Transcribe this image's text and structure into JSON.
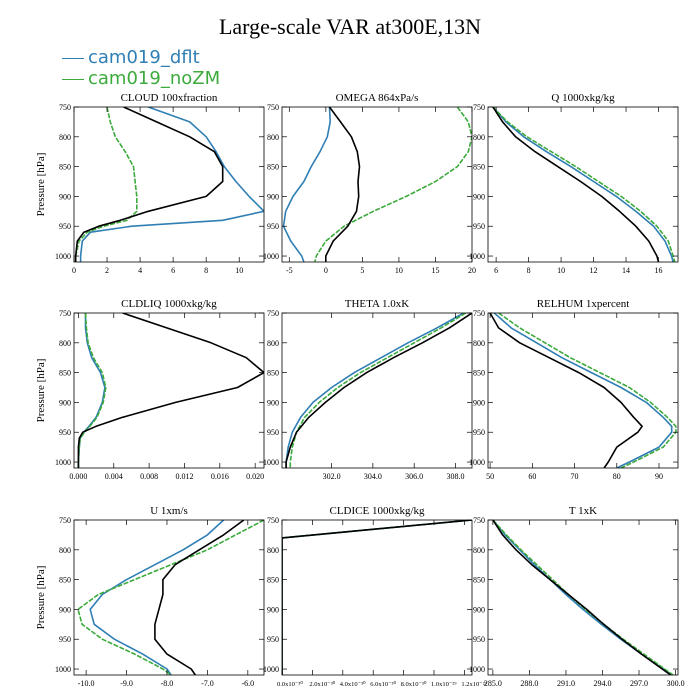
{
  "title": "Large-scale VAR at300E,13N",
  "legend": [
    {
      "name": "cam019_dflt",
      "color": "#2f7fb5"
    },
    {
      "name": "cam019_noZM",
      "color": "#3caa3c"
    }
  ],
  "colors": {
    "third": "#000000",
    "axis": "#000000"
  },
  "chart_data": [
    {
      "type": "line",
      "title": "CLOUD  100xfraction",
      "ylabel": "Pressure [hPa]",
      "xlim": [
        0,
        11.5
      ],
      "ylim": [
        750,
        1010
      ],
      "xticks": [
        0,
        2,
        4,
        6,
        8,
        10
      ],
      "xtick_labels": [
        "0",
        "2",
        "4",
        "6",
        "8",
        "10"
      ],
      "yticks": [
        750,
        800,
        850,
        900,
        950,
        1000
      ],
      "ytick_labels": [
        "750",
        "800",
        "850",
        "900",
        "950",
        "1000"
      ],
      "pressure": [
        750,
        775,
        800,
        825,
        850,
        875,
        900,
        925,
        940,
        950,
        960,
        975,
        1000,
        1010
      ],
      "series": [
        {
          "color": "#2f7fb5",
          "values": [
            4.5,
            7.0,
            8.0,
            8.6,
            9.1,
            9.8,
            10.6,
            11.5,
            9.0,
            3.5,
            1.0,
            0.5,
            0.4,
            0.4
          ]
        },
        {
          "color": "#3caa3c",
          "values": [
            2.0,
            2.2,
            2.5,
            3.1,
            3.6,
            3.7,
            3.8,
            3.8,
            3.2,
            1.8,
            0.8,
            0.3,
            0.1,
            0.1
          ]
        },
        {
          "color": "#000000",
          "values": [
            3.0,
            5.0,
            7.0,
            8.5,
            9.0,
            9.0,
            8.0,
            4.5,
            2.8,
            1.5,
            0.6,
            0.2,
            0.1,
            0.1
          ]
        }
      ]
    },
    {
      "type": "line",
      "title": "OMEGA  864xPa/s",
      "ylabel": "",
      "xlim": [
        -6,
        20
      ],
      "ylim": [
        750,
        1010
      ],
      "xticks": [
        -5,
        0,
        5,
        10,
        15,
        20
      ],
      "xtick_labels": [
        "-5",
        "0",
        "5",
        "10",
        "15",
        "20"
      ],
      "yticks": [
        750,
        800,
        850,
        900,
        950,
        1000
      ],
      "ytick_labels": [
        "750",
        "800",
        "850",
        "900",
        "950",
        "1000"
      ],
      "pressure": [
        750,
        775,
        800,
        825,
        850,
        875,
        900,
        925,
        950,
        975,
        1000,
        1010
      ],
      "series": [
        {
          "color": "#2f7fb5",
          "values": [
            0.5,
            0.6,
            0.2,
            -0.8,
            -2.0,
            -3.0,
            -4.5,
            -5.5,
            -5.8,
            -4.8,
            -3.3,
            -3.0
          ]
        },
        {
          "color": "#3caa3c",
          "values": [
            18.0,
            19.5,
            20.0,
            19.5,
            18.0,
            15.0,
            11.0,
            6.5,
            2.5,
            0.0,
            -1.3,
            -1.5
          ]
        },
        {
          "color": "#000000",
          "values": [
            0.5,
            2.0,
            3.5,
            4.3,
            4.6,
            4.4,
            4.5,
            4.2,
            3.0,
            1.0,
            0.0,
            0.0
          ]
        }
      ]
    },
    {
      "type": "line",
      "title": "Q  1000xkg/kg",
      "ylabel": "",
      "xlim": [
        5.5,
        17.2
      ],
      "ylim": [
        750,
        1010
      ],
      "xticks": [
        6,
        8,
        10,
        12,
        14,
        16
      ],
      "xtick_labels": [
        "6",
        "8",
        "10",
        "12",
        "14",
        "16"
      ],
      "yticks": [
        750,
        800,
        850,
        900,
        950,
        1000
      ],
      "ytick_labels": [
        "750",
        "800",
        "850",
        "900",
        "950",
        "1000"
      ],
      "pressure": [
        750,
        775,
        800,
        825,
        850,
        875,
        900,
        925,
        950,
        975,
        1000,
        1010
      ],
      "series": [
        {
          "color": "#2f7fb5",
          "values": [
            5.8,
            6.6,
            7.7,
            9.1,
            10.6,
            12.0,
            13.4,
            14.6,
            15.7,
            16.4,
            16.8,
            16.9
          ]
        },
        {
          "color": "#3caa3c",
          "values": [
            5.8,
            6.7,
            7.9,
            9.4,
            10.9,
            12.3,
            13.7,
            14.9,
            15.9,
            16.6,
            16.9,
            17.0
          ]
        },
        {
          "color": "#000000",
          "values": [
            5.8,
            6.4,
            7.2,
            8.4,
            9.8,
            11.2,
            12.5,
            13.6,
            14.6,
            15.4,
            15.9,
            16.0
          ]
        }
      ]
    },
    {
      "type": "line",
      "title": "CLDLIQ  1000xkg/kg",
      "ylabel": "Pressure [hPa]",
      "xlim": [
        -0.0005,
        0.021
      ],
      "ylim": [
        750,
        1010
      ],
      "xticks": [
        0,
        0.004,
        0.008,
        0.012,
        0.016,
        0.02
      ],
      "xtick_labels": [
        "0.000",
        "0.004",
        "0.008",
        "0.012",
        "0.016",
        "0.020"
      ],
      "yticks": [
        750,
        800,
        850,
        900,
        950,
        1000
      ],
      "ytick_labels": [
        "750",
        "800",
        "850",
        "900",
        "950",
        "1000"
      ],
      "pressure": [
        750,
        775,
        800,
        825,
        850,
        875,
        900,
        925,
        940,
        950,
        960,
        975,
        1000,
        1010
      ],
      "series": [
        {
          "color": "#2f7fb5",
          "values": [
            0.0008,
            0.0008,
            0.001,
            0.0015,
            0.0025,
            0.003,
            0.0027,
            0.002,
            0.0012,
            0.0006,
            0.0002,
            0.0001,
            0.0,
            0.0
          ]
        },
        {
          "color": "#3caa3c",
          "values": [
            0.0008,
            0.0009,
            0.0011,
            0.0017,
            0.0027,
            0.0031,
            0.0028,
            0.0021,
            0.0013,
            0.0007,
            0.0002,
            0.0001,
            0.0,
            0.0
          ]
        },
        {
          "color": "#000000",
          "values": [
            0.005,
            0.01,
            0.015,
            0.019,
            0.021,
            0.018,
            0.011,
            0.005,
            0.002,
            0.0005,
            0.0001,
            0.0,
            0.0,
            0.0
          ]
        }
      ]
    },
    {
      "type": "line",
      "title": "THETA  1.0xK",
      "ylabel": "",
      "xlim": [
        299.6,
        308.8
      ],
      "ylim": [
        750,
        1010
      ],
      "xticks": [
        302,
        304,
        306,
        308
      ],
      "xtick_labels": [
        "302.0",
        "304.0",
        "306.0",
        "308.0"
      ],
      "yticks": [
        750,
        800,
        850,
        900,
        950,
        1000
      ],
      "ytick_labels": [
        "750",
        "800",
        "850",
        "900",
        "950",
        "1000"
      ],
      "pressure": [
        750,
        775,
        800,
        825,
        850,
        875,
        900,
        925,
        950,
        975,
        1000,
        1010
      ],
      "series": [
        {
          "color": "#2f7fb5",
          "values": [
            308.4,
            307.1,
            305.7,
            304.4,
            303.1,
            302.0,
            301.1,
            300.5,
            300.1,
            299.9,
            299.8,
            299.8
          ]
        },
        {
          "color": "#3caa3c",
          "values": [
            308.5,
            307.3,
            306.0,
            304.7,
            303.4,
            302.3,
            301.4,
            300.7,
            300.3,
            300.1,
            300.0,
            300.0
          ]
        },
        {
          "color": "#000000",
          "values": [
            308.8,
            307.7,
            306.4,
            305.0,
            303.7,
            302.6,
            301.7,
            300.9,
            300.3,
            300.0,
            299.8,
            299.8
          ]
        }
      ]
    },
    {
      "type": "line",
      "title": "RELHUM  1xpercent",
      "ylabel": "",
      "xlim": [
        49.5,
        94.5
      ],
      "ylim": [
        750,
        1010
      ],
      "xticks": [
        50,
        60,
        70,
        80,
        90
      ],
      "xtick_labels": [
        "50",
        "60",
        "70",
        "80",
        "90"
      ],
      "yticks": [
        750,
        800,
        850,
        900,
        950,
        1000
      ],
      "ytick_labels": [
        "750",
        "800",
        "850",
        "900",
        "950",
        "1000"
      ],
      "pressure": [
        750,
        775,
        800,
        825,
        850,
        875,
        900,
        925,
        940,
        950,
        975,
        1000,
        1010
      ],
      "series": [
        {
          "color": "#2f7fb5",
          "values": [
            51,
            55,
            61,
            67,
            74,
            81,
            87,
            91,
            93,
            93,
            90,
            83,
            80
          ]
        },
        {
          "color": "#3caa3c",
          "values": [
            52,
            57,
            63,
            69,
            76,
            83,
            88,
            92,
            94,
            94,
            91,
            84,
            81
          ]
        },
        {
          "color": "#000000",
          "values": [
            50,
            52,
            57,
            64,
            71,
            77,
            81,
            84,
            86,
            85,
            80,
            78,
            77
          ]
        }
      ]
    },
    {
      "type": "line",
      "title": "U  1xm/s",
      "ylabel": "Pressure [hPa]",
      "xlim": [
        -10.3,
        -5.6
      ],
      "ylim": [
        750,
        1010
      ],
      "xticks": [
        -10,
        -9,
        -8,
        -7,
        -6
      ],
      "xtick_labels": [
        "-10.0",
        "-9.0",
        "-8.0",
        "-7.0",
        "-6.0"
      ],
      "yticks": [
        750,
        800,
        850,
        900,
        950,
        1000
      ],
      "ytick_labels": [
        "750",
        "800",
        "850",
        "900",
        "950",
        "1000"
      ],
      "pressure": [
        750,
        775,
        800,
        825,
        850,
        875,
        900,
        925,
        950,
        975,
        1000,
        1010
      ],
      "series": [
        {
          "color": "#2f7fb5",
          "values": [
            -6.6,
            -7.0,
            -7.6,
            -8.3,
            -9.0,
            -9.6,
            -9.9,
            -9.8,
            -9.3,
            -8.6,
            -8.0,
            -7.9
          ]
        },
        {
          "color": "#3caa3c",
          "values": [
            -5.6,
            -6.3,
            -7.0,
            -7.9,
            -8.8,
            -9.7,
            -10.2,
            -10.1,
            -9.6,
            -8.8,
            -8.1,
            -7.9
          ]
        },
        {
          "color": "#000000",
          "values": [
            -6.1,
            -6.6,
            -7.2,
            -7.8,
            -8.1,
            -8.1,
            -8.2,
            -8.3,
            -8.3,
            -8.0,
            -7.4,
            -7.3
          ]
        }
      ]
    },
    {
      "type": "line",
      "title": "CLDICE  1000xkg/kg",
      "ylabel": "",
      "xlim": [
        0,
        1.25e-29
      ],
      "ylim": [
        750,
        1010
      ],
      "xticks": [
        0,
        2e-30,
        4e-30,
        6e-30,
        8e-30,
        1e-29,
        1.2e-29
      ],
      "xtick_labels": [
        "0.0x10⁻³⁰",
        "2.0x10⁻³⁰",
        "4.0x10⁻³⁰",
        "6.0x10⁻³⁰",
        "8.0x10⁻³⁰",
        "1.0x10⁻²⁹",
        "1.2x10⁻²⁹"
      ],
      "yticks": [
        750,
        800,
        850,
        900,
        950,
        1000
      ],
      "ytick_labels": [
        "750",
        "800",
        "850",
        "900",
        "950",
        "1000"
      ],
      "pressure": [
        750,
        780,
        800,
        850,
        900,
        950,
        1000,
        1010
      ],
      "series": [
        {
          "color": "#2f7fb5",
          "values": [
            1.25e-29,
            0,
            0,
            0,
            0,
            0,
            0,
            0
          ]
        },
        {
          "color": "#3caa3c",
          "values": [
            1.25e-29,
            0,
            0,
            0,
            0,
            0,
            0,
            0
          ]
        },
        {
          "color": "#000000",
          "values": [
            1.25e-29,
            0,
            0,
            0,
            0,
            0,
            0,
            0
          ]
        }
      ]
    },
    {
      "type": "line",
      "title": "T  1xK",
      "ylabel": "",
      "xlim": [
        284.6,
        300.2
      ],
      "ylim": [
        750,
        1010
      ],
      "xticks": [
        285,
        288,
        291,
        294,
        297,
        300
      ],
      "xtick_labels": [
        "285.0",
        "288.0",
        "291.0",
        "294.0",
        "297.0",
        "300.0"
      ],
      "yticks": [
        750,
        800,
        850,
        900,
        950,
        1000
      ],
      "ytick_labels": [
        "750",
        "800",
        "850",
        "900",
        "950",
        "1000"
      ],
      "pressure": [
        750,
        775,
        800,
        825,
        850,
        875,
        900,
        925,
        950,
        975,
        1000,
        1010
      ],
      "series": [
        {
          "color": "#2f7fb5",
          "values": [
            285.0,
            286.0,
            287.2,
            288.4,
            289.7,
            291.0,
            292.4,
            293.9,
            295.5,
            297.2,
            299.0,
            299.7
          ]
        },
        {
          "color": "#3caa3c",
          "values": [
            285.0,
            286.1,
            287.3,
            288.6,
            289.9,
            291.2,
            292.6,
            294.1,
            295.7,
            297.4,
            299.1,
            299.8
          ]
        },
        {
          "color": "#000000",
          "values": [
            285.0,
            285.8,
            286.9,
            288.2,
            289.7,
            291.2,
            292.7,
            294.1,
            295.6,
            297.2,
            298.9,
            299.6
          ]
        }
      ]
    }
  ]
}
